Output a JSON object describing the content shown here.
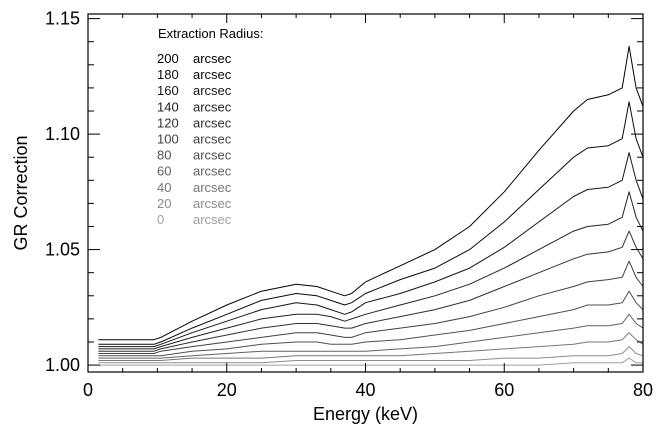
{
  "chart_data": {
    "type": "line",
    "title": "",
    "xlabel": "Energy (keV)",
    "ylabel": "GR Correction",
    "xlim": [
      0,
      80
    ],
    "ylim": [
      0.997,
      1.152
    ],
    "x_ticks": [
      0,
      20,
      40,
      60,
      80
    ],
    "x_tick_labels": [
      "0",
      "20",
      "40",
      "60",
      "80"
    ],
    "y_ticks": [
      1.0,
      1.05,
      1.1,
      1.15
    ],
    "y_tick_labels": [
      "1.00",
      "1.05",
      "1.10",
      "1.15"
    ],
    "grid": false,
    "legend": {
      "title": "Extraction Radius:",
      "placement": "top-left",
      "unit": "arcsec"
    },
    "x": [
      1.5,
      9.5,
      10.5,
      15,
      20,
      25,
      30,
      33,
      35,
      37,
      38,
      40,
      45,
      50,
      55,
      60,
      65,
      70,
      72,
      75,
      77,
      78,
      79,
      80
    ],
    "series": [
      {
        "name": "200",
        "color": "#000000",
        "values": [
          1.011,
          1.011,
          1.012,
          1.019,
          1.026,
          1.032,
          1.035,
          1.034,
          1.032,
          1.03,
          1.031,
          1.036,
          1.043,
          1.05,
          1.06,
          1.075,
          1.093,
          1.11,
          1.115,
          1.117,
          1.12,
          1.138,
          1.12,
          1.112
        ]
      },
      {
        "name": "180",
        "color": "#0a0a0a",
        "values": [
          1.009,
          1.009,
          1.01,
          1.016,
          1.022,
          1.028,
          1.031,
          1.03,
          1.028,
          1.026,
          1.027,
          1.031,
          1.037,
          1.042,
          1.05,
          1.062,
          1.076,
          1.09,
          1.094,
          1.095,
          1.098,
          1.114,
          1.098,
          1.09
        ]
      },
      {
        "name": "160",
        "color": "#151515",
        "values": [
          1.008,
          1.008,
          1.009,
          1.014,
          1.019,
          1.024,
          1.027,
          1.026,
          1.024,
          1.022,
          1.023,
          1.027,
          1.031,
          1.036,
          1.042,
          1.051,
          1.062,
          1.073,
          1.076,
          1.077,
          1.08,
          1.092,
          1.08,
          1.072
        ]
      },
      {
        "name": "140",
        "color": "#222222",
        "values": [
          1.007,
          1.007,
          1.008,
          1.012,
          1.016,
          1.02,
          1.022,
          1.022,
          1.021,
          1.019,
          1.02,
          1.022,
          1.026,
          1.03,
          1.035,
          1.042,
          1.05,
          1.058,
          1.06,
          1.061,
          1.064,
          1.075,
          1.064,
          1.058
        ]
      },
      {
        "name": "120",
        "color": "#303030",
        "values": [
          1.006,
          1.006,
          1.007,
          1.01,
          1.013,
          1.016,
          1.018,
          1.018,
          1.017,
          1.016,
          1.016,
          1.018,
          1.021,
          1.024,
          1.028,
          1.034,
          1.04,
          1.046,
          1.048,
          1.049,
          1.051,
          1.058,
          1.051,
          1.046
        ]
      },
      {
        "name": "100",
        "color": "#404040",
        "values": [
          1.005,
          1.005,
          1.006,
          1.008,
          1.01,
          1.012,
          1.014,
          1.014,
          1.013,
          1.012,
          1.012,
          1.014,
          1.016,
          1.018,
          1.021,
          1.025,
          1.03,
          1.034,
          1.036,
          1.037,
          1.038,
          1.045,
          1.038,
          1.034
        ]
      },
      {
        "name": "80",
        "color": "#505050",
        "values": [
          1.004,
          1.004,
          1.004,
          1.006,
          1.007,
          1.009,
          1.01,
          1.01,
          1.009,
          1.009,
          1.009,
          1.01,
          1.011,
          1.013,
          1.015,
          1.018,
          1.021,
          1.024,
          1.026,
          1.026,
          1.027,
          1.032,
          1.027,
          1.024
        ]
      },
      {
        "name": "60",
        "color": "#626262",
        "values": [
          1.003,
          1.003,
          1.003,
          1.004,
          1.005,
          1.006,
          1.006,
          1.006,
          1.006,
          1.006,
          1.006,
          1.006,
          1.007,
          1.008,
          1.01,
          1.012,
          1.014,
          1.016,
          1.017,
          1.017,
          1.018,
          1.022,
          1.018,
          1.016
        ]
      },
      {
        "name": "40",
        "color": "#767676",
        "values": [
          1.002,
          1.002,
          1.002,
          1.003,
          1.003,
          1.003,
          1.004,
          1.004,
          1.004,
          1.004,
          1.004,
          1.004,
          1.004,
          1.005,
          1.006,
          1.007,
          1.008,
          1.009,
          1.01,
          1.01,
          1.011,
          1.014,
          1.011,
          1.009
        ]
      },
      {
        "name": "20",
        "color": "#8c8c8c",
        "values": [
          1.001,
          1.001,
          1.001,
          1.001,
          1.001,
          1.001,
          1.002,
          1.002,
          1.002,
          1.002,
          1.002,
          1.002,
          1.002,
          1.002,
          1.002,
          1.003,
          1.003,
          1.004,
          1.004,
          1.004,
          1.005,
          1.008,
          1.005,
          1.004
        ]
      },
      {
        "name": "0",
        "color": "#a0a0a0",
        "values": [
          1.0,
          1.0,
          1.0,
          1.0,
          1.0,
          1.0,
          1.0,
          1.0,
          1.0,
          1.0,
          1.0,
          1.0,
          1.0,
          1.0,
          1.0,
          1.0,
          1.0,
          1.001,
          1.001,
          1.001,
          1.001,
          1.003,
          1.001,
          1.001
        ]
      }
    ]
  }
}
